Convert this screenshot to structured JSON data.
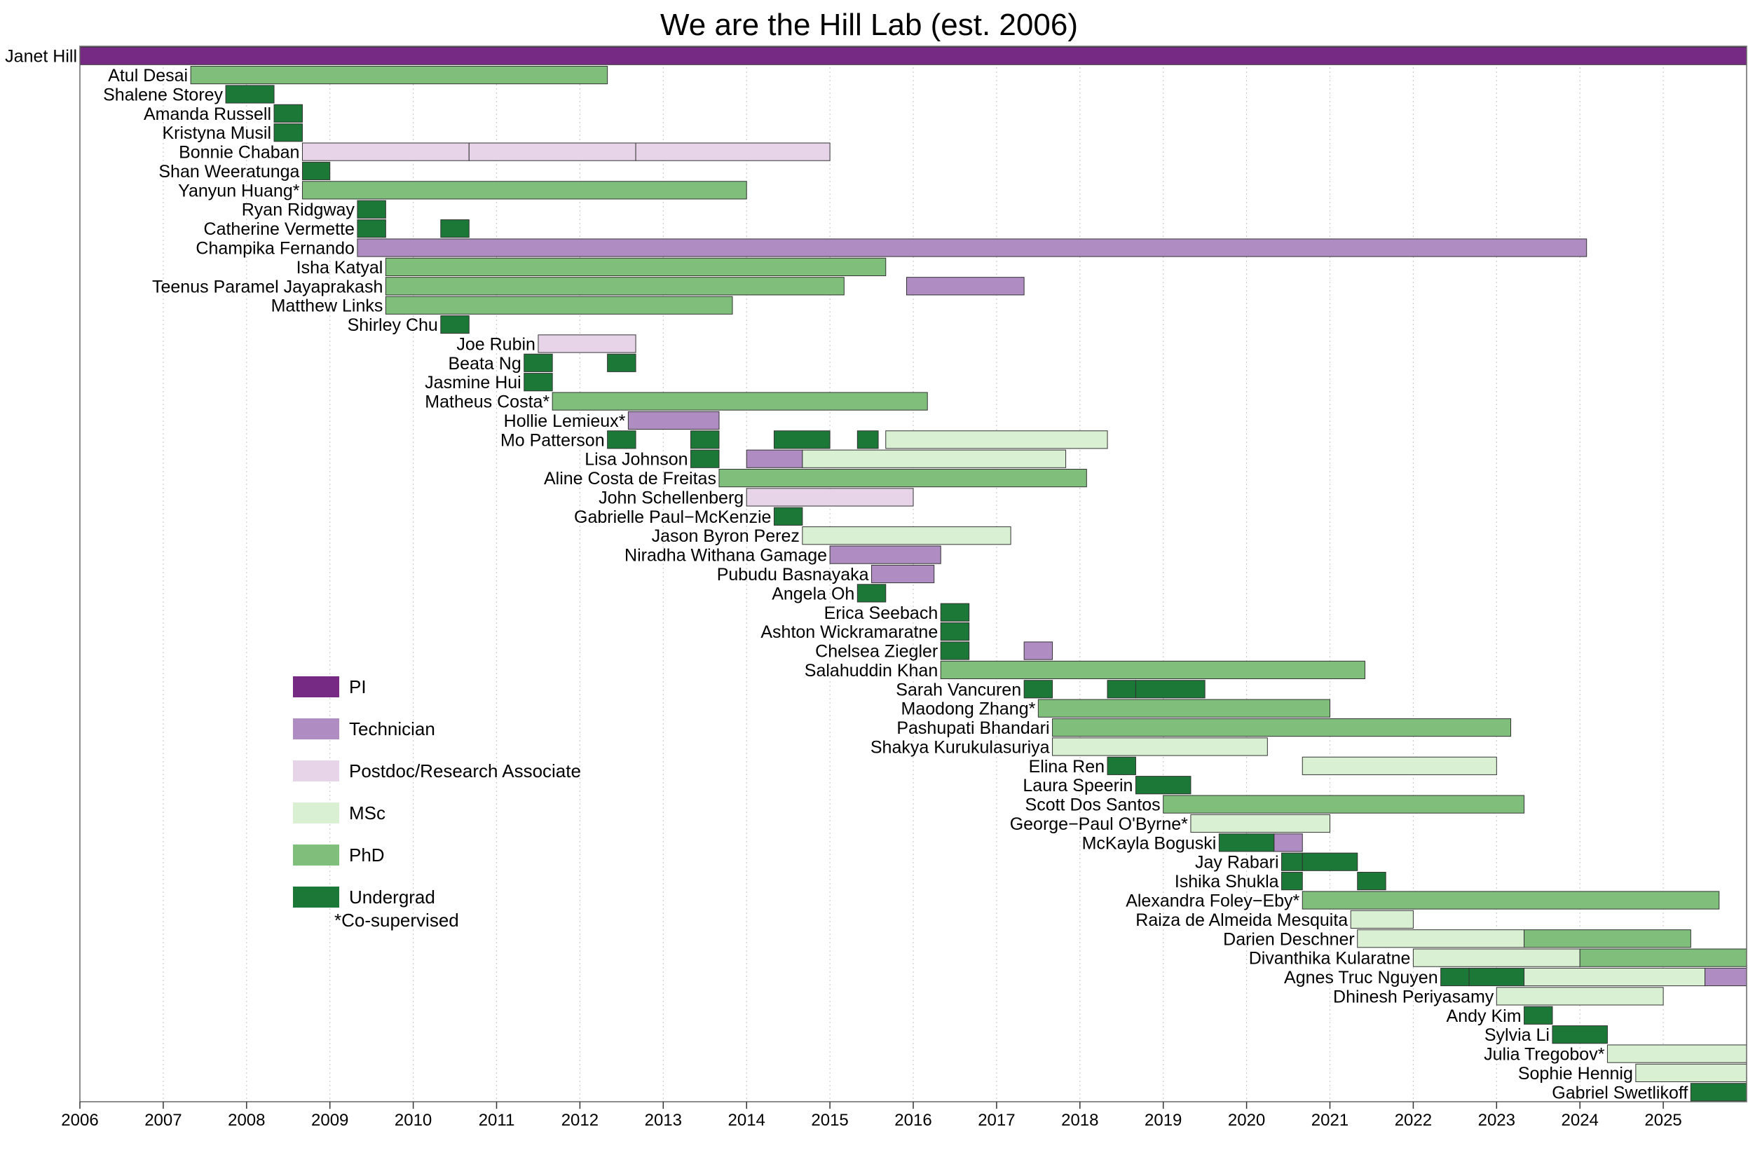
{
  "chart_data": {
    "type": "timeline",
    "title": "We are the Hill Lab (est. 2006)",
    "xlim": [
      2006,
      2026
    ],
    "x_ticks": [
      "2006",
      "2007",
      "2008",
      "2009",
      "2010",
      "2011",
      "2012",
      "2013",
      "2014",
      "2015",
      "2016",
      "2017",
      "2018",
      "2019",
      "2020",
      "2021",
      "2022",
      "2023",
      "2024",
      "2025"
    ],
    "grid": "vertical dotted",
    "legend_position": "left-center",
    "footnote": "*Co-supervised",
    "roles": [
      {
        "key": "pi",
        "name": "PI",
        "color": "#762a83"
      },
      {
        "key": "tech",
        "name": "Technician",
        "color": "#af8dc3"
      },
      {
        "key": "postdoc",
        "name": "Postdoc/Research Associate",
        "color": "#e7d4e8"
      },
      {
        "key": "msc",
        "name": "MSc",
        "color": "#d9f0d3"
      },
      {
        "key": "phd",
        "name": "PhD",
        "color": "#7fbf7b"
      },
      {
        "key": "ug",
        "name": "Undergrad",
        "color": "#1b7837"
      }
    ],
    "members": [
      {
        "name": "Janet Hill",
        "segments": [
          [
            2006,
            2026,
            "pi"
          ]
        ]
      },
      {
        "name": "Atul Desai",
        "segments": [
          [
            2007.33,
            2012.33,
            "phd"
          ]
        ]
      },
      {
        "name": "Shalene Storey",
        "segments": [
          [
            2007.75,
            2008.33,
            "ug"
          ]
        ]
      },
      {
        "name": "Amanda Russell",
        "segments": [
          [
            2008.33,
            2008.67,
            "ug"
          ]
        ]
      },
      {
        "name": "Kristyna Musil",
        "segments": [
          [
            2008.33,
            2008.67,
            "ug"
          ]
        ]
      },
      {
        "name": "Bonnie Chaban",
        "segments": [
          [
            2008.67,
            2010.67,
            "postdoc"
          ],
          [
            2010.67,
            2012.67,
            "postdoc"
          ],
          [
            2012.67,
            2015.0,
            "postdoc"
          ]
        ]
      },
      {
        "name": "Shan Weeratunga",
        "segments": [
          [
            2008.67,
            2009.0,
            "ug"
          ]
        ]
      },
      {
        "name": "Yanyun Huang*",
        "segments": [
          [
            2008.67,
            2014.0,
            "phd"
          ]
        ]
      },
      {
        "name": "Ryan Ridgway",
        "segments": [
          [
            2009.33,
            2009.67,
            "ug"
          ]
        ]
      },
      {
        "name": "Catherine Vermette",
        "segments": [
          [
            2009.33,
            2009.67,
            "ug"
          ],
          [
            2010.33,
            2010.67,
            "ug"
          ]
        ]
      },
      {
        "name": "Champika Fernando",
        "segments": [
          [
            2009.33,
            2024.08,
            "tech"
          ]
        ]
      },
      {
        "name": "Isha Katyal",
        "segments": [
          [
            2009.67,
            2015.67,
            "phd"
          ]
        ]
      },
      {
        "name": "Teenus Paramel Jayaprakash",
        "segments": [
          [
            2009.67,
            2015.17,
            "phd"
          ],
          [
            2015.92,
            2017.33,
            "tech"
          ]
        ]
      },
      {
        "name": "Matthew Links",
        "segments": [
          [
            2009.67,
            2013.83,
            "phd"
          ]
        ]
      },
      {
        "name": "Shirley Chu",
        "segments": [
          [
            2010.33,
            2010.67,
            "ug"
          ]
        ]
      },
      {
        "name": "Joe Rubin",
        "segments": [
          [
            2011.5,
            2012.67,
            "postdoc"
          ]
        ]
      },
      {
        "name": "Beata Ng",
        "segments": [
          [
            2011.33,
            2011.67,
            "ug"
          ],
          [
            2012.33,
            2012.67,
            "ug"
          ]
        ]
      },
      {
        "name": "Jasmine Hui",
        "segments": [
          [
            2011.33,
            2011.67,
            "ug"
          ]
        ]
      },
      {
        "name": "Matheus Costa*",
        "segments": [
          [
            2011.67,
            2016.17,
            "phd"
          ]
        ]
      },
      {
        "name": "Hollie Lemieux*",
        "segments": [
          [
            2012.58,
            2013.67,
            "tech"
          ]
        ]
      },
      {
        "name": "Mo Patterson",
        "segments": [
          [
            2012.33,
            2012.67,
            "ug"
          ],
          [
            2013.33,
            2013.67,
            "ug"
          ],
          [
            2014.33,
            2015.0,
            "ug"
          ],
          [
            2015.33,
            2015.58,
            "ug"
          ],
          [
            2015.67,
            2018.33,
            "msc"
          ]
        ]
      },
      {
        "name": "Lisa Johnson",
        "segments": [
          [
            2013.33,
            2013.67,
            "ug"
          ],
          [
            2014.0,
            2014.67,
            "tech"
          ],
          [
            2014.67,
            2017.83,
            "msc"
          ]
        ]
      },
      {
        "name": "Aline Costa de Freitas",
        "segments": [
          [
            2013.67,
            2018.08,
            "phd"
          ]
        ]
      },
      {
        "name": "John Schellenberg",
        "segments": [
          [
            2014.0,
            2016.0,
            "postdoc"
          ]
        ]
      },
      {
        "name": "Gabrielle Paul−McKenzie",
        "segments": [
          [
            2014.33,
            2014.67,
            "ug"
          ]
        ]
      },
      {
        "name": "Jason Byron Perez",
        "segments": [
          [
            2014.67,
            2017.17,
            "msc"
          ]
        ]
      },
      {
        "name": "Niradha Withana Gamage",
        "segments": [
          [
            2015.0,
            2016.33,
            "tech"
          ]
        ]
      },
      {
        "name": "Pubudu Basnayaka",
        "segments": [
          [
            2015.5,
            2016.25,
            "tech"
          ]
        ]
      },
      {
        "name": "Angela Oh",
        "segments": [
          [
            2015.33,
            2015.67,
            "ug"
          ]
        ]
      },
      {
        "name": "Erica Seebach",
        "segments": [
          [
            2016.33,
            2016.67,
            "ug"
          ]
        ]
      },
      {
        "name": "Ashton Wickramaratne",
        "segments": [
          [
            2016.33,
            2016.67,
            "ug"
          ]
        ]
      },
      {
        "name": "Chelsea Ziegler",
        "segments": [
          [
            2016.33,
            2016.67,
            "ug"
          ],
          [
            2017.33,
            2017.67,
            "tech"
          ]
        ]
      },
      {
        "name": "Salahuddin Khan",
        "segments": [
          [
            2016.33,
            2021.42,
            "phd"
          ]
        ]
      },
      {
        "name": "Sarah Vancuren",
        "segments": [
          [
            2017.33,
            2017.67,
            "ug"
          ],
          [
            2018.33,
            2018.67,
            "ug"
          ],
          [
            2018.67,
            2019.5,
            "ug"
          ]
        ]
      },
      {
        "name": "Maodong Zhang*",
        "segments": [
          [
            2017.5,
            2021.0,
            "phd"
          ]
        ]
      },
      {
        "name": "Pashupati Bhandari",
        "segments": [
          [
            2017.67,
            2023.17,
            "phd"
          ]
        ]
      },
      {
        "name": "Shakya Kurukulasuriya",
        "segments": [
          [
            2017.67,
            2020.25,
            "msc"
          ]
        ]
      },
      {
        "name": "Elina Ren",
        "segments": [
          [
            2018.33,
            2018.67,
            "ug"
          ],
          [
            2020.67,
            2023.0,
            "msc"
          ]
        ]
      },
      {
        "name": "Laura Speerin",
        "segments": [
          [
            2018.67,
            2019.33,
            "ug"
          ]
        ]
      },
      {
        "name": "Scott Dos Santos",
        "segments": [
          [
            2019.0,
            2023.33,
            "phd"
          ]
        ]
      },
      {
        "name": "George−Paul O'Byrne*",
        "segments": [
          [
            2019.33,
            2021.0,
            "msc"
          ]
        ]
      },
      {
        "name": "McKayla Boguski",
        "segments": [
          [
            2019.67,
            2020.33,
            "ug"
          ],
          [
            2020.33,
            2020.67,
            "tech"
          ]
        ]
      },
      {
        "name": "Jay Rabari",
        "segments": [
          [
            2020.42,
            2020.67,
            "ug"
          ],
          [
            2020.67,
            2021.33,
            "ug"
          ]
        ]
      },
      {
        "name": "Ishika Shukla",
        "segments": [
          [
            2020.42,
            2020.67,
            "ug"
          ],
          [
            2021.33,
            2021.67,
            "ug"
          ]
        ]
      },
      {
        "name": "Alexandra Foley−Eby*",
        "segments": [
          [
            2020.67,
            2025.67,
            "phd"
          ]
        ]
      },
      {
        "name": "Raiza de Almeida Mesquita",
        "segments": [
          [
            2021.25,
            2022.0,
            "msc"
          ]
        ]
      },
      {
        "name": "Darien Deschner",
        "segments": [
          [
            2021.33,
            2023.33,
            "msc"
          ],
          [
            2023.33,
            2025.33,
            "phd"
          ]
        ]
      },
      {
        "name": "Divanthika Kularatne",
        "segments": [
          [
            2022.0,
            2024.0,
            "msc"
          ],
          [
            2024.0,
            2026.0,
            "phd"
          ]
        ]
      },
      {
        "name": "Agnes Truc Nguyen",
        "segments": [
          [
            2022.33,
            2022.67,
            "ug"
          ],
          [
            2022.67,
            2023.33,
            "ug"
          ],
          [
            2023.33,
            2025.5,
            "msc"
          ],
          [
            2025.5,
            2026.0,
            "tech"
          ]
        ]
      },
      {
        "name": "Dhinesh Periyasamy",
        "segments": [
          [
            2023.0,
            2025.0,
            "msc"
          ]
        ]
      },
      {
        "name": "Andy Kim",
        "segments": [
          [
            2023.33,
            2023.67,
            "ug"
          ]
        ]
      },
      {
        "name": "Sylvia Li",
        "segments": [
          [
            2023.67,
            2024.33,
            "ug"
          ]
        ]
      },
      {
        "name": "Julia Tregobov*",
        "segments": [
          [
            2024.33,
            2026.0,
            "msc"
          ]
        ]
      },
      {
        "name": "Sophie Hennig",
        "segments": [
          [
            2024.67,
            2026.0,
            "msc"
          ]
        ]
      },
      {
        "name": "Gabriel Swetlikoff",
        "segments": [
          [
            2025.33,
            2026.0,
            "ug"
          ]
        ]
      }
    ]
  }
}
